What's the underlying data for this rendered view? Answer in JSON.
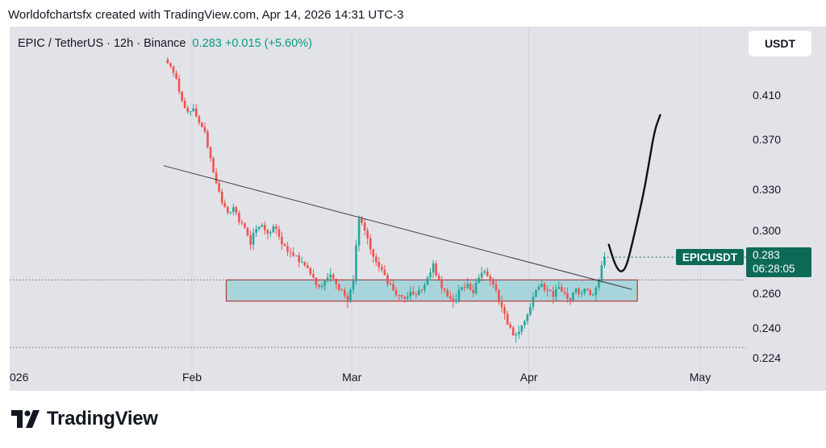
{
  "header": {
    "caption": "Worldofchartsfx created with TradingView.com, Apr 14, 2026 14:31 UTC-3"
  },
  "legend": {
    "symbol": "EPIC / TetherUS · 12h · Binance",
    "price": "0.283",
    "change": "+0.015 (+5.60%)"
  },
  "currency_button": "USDT",
  "price_tag": {
    "symbol": "EPICUSDT",
    "price": "0.283",
    "countdown": "06:28:05"
  },
  "colors": {
    "up": "#26a69a",
    "down": "#ef5350",
    "zone_fill": "#a8d5dc",
    "zone_border": "#b23a3a",
    "tag": "#0c6b57"
  },
  "brand": {
    "name": "TradingView",
    "icon": "tradingview-logo-icon"
  },
  "chart_data": {
    "type": "candlestick",
    "symbol": "EPICUSDT",
    "timeframe": "12h",
    "y_ticks": [
      "0.410",
      "0.370",
      "0.330",
      "0.300",
      "0.260",
      "0.240",
      "0.224"
    ],
    "x_ticks": [
      {
        "label": "026",
        "date": "2026-01-01"
      },
      {
        "label": "Feb",
        "date": "2026-02-01"
      },
      {
        "label": "Mar",
        "date": "2026-03-01"
      },
      {
        "label": "Apr",
        "date": "2026-04-01"
      },
      {
        "label": "May",
        "date": "2026-05-01"
      }
    ],
    "closes": [
      [
        "2026-01-28",
        0.436
      ],
      [
        "2026-01-29",
        0.425
      ],
      [
        "2026-01-30",
        0.405
      ],
      [
        "2026-01-31",
        0.395
      ],
      [
        "2026-02-01",
        0.398
      ],
      [
        "2026-02-02",
        0.385
      ],
      [
        "2026-02-03",
        0.377
      ],
      [
        "2026-02-04",
        0.355
      ],
      [
        "2026-02-05",
        0.335
      ],
      [
        "2026-02-06",
        0.32
      ],
      [
        "2026-02-07",
        0.313
      ],
      [
        "2026-02-08",
        0.317
      ],
      [
        "2026-02-09",
        0.306
      ],
      [
        "2026-02-10",
        0.302
      ],
      [
        "2026-02-11",
        0.291
      ],
      [
        "2026-02-12",
        0.301
      ],
      [
        "2026-02-13",
        0.304
      ],
      [
        "2026-02-14",
        0.298
      ],
      [
        "2026-02-15",
        0.303
      ],
      [
        "2026-02-16",
        0.296
      ],
      [
        "2026-02-17",
        0.29
      ],
      [
        "2026-02-18",
        0.286
      ],
      [
        "2026-02-19",
        0.284
      ],
      [
        "2026-02-20",
        0.28
      ],
      [
        "2026-02-21",
        0.276
      ],
      [
        "2026-02-22",
        0.27
      ],
      [
        "2026-02-23",
        0.264
      ],
      [
        "2026-02-24",
        0.268
      ],
      [
        "2026-02-25",
        0.272
      ],
      [
        "2026-02-26",
        0.266
      ],
      [
        "2026-02-27",
        0.262
      ],
      [
        "2026-02-28",
        0.255
      ],
      [
        "2026-03-01",
        0.268
      ],
      [
        "2026-03-02",
        0.309
      ],
      [
        "2026-03-03",
        0.3
      ],
      [
        "2026-03-04",
        0.288
      ],
      [
        "2026-03-05",
        0.28
      ],
      [
        "2026-03-06",
        0.275
      ],
      [
        "2026-03-07",
        0.266
      ],
      [
        "2026-03-08",
        0.262
      ],
      [
        "2026-03-09",
        0.259
      ],
      [
        "2026-03-10",
        0.257
      ],
      [
        "2026-03-11",
        0.261
      ],
      [
        "2026-03-12",
        0.259
      ],
      [
        "2026-03-13",
        0.262
      ],
      [
        "2026-03-14",
        0.27
      ],
      [
        "2026-03-15",
        0.279
      ],
      [
        "2026-03-16",
        0.268
      ],
      [
        "2026-03-17",
        0.262
      ],
      [
        "2026-03-18",
        0.257
      ],
      [
        "2026-03-19",
        0.256
      ],
      [
        "2026-03-20",
        0.264
      ],
      [
        "2026-03-21",
        0.266
      ],
      [
        "2026-03-22",
        0.26
      ],
      [
        "2026-03-23",
        0.27
      ],
      [
        "2026-03-24",
        0.274
      ],
      [
        "2026-03-25",
        0.268
      ],
      [
        "2026-03-26",
        0.262
      ],
      [
        "2026-03-27",
        0.252
      ],
      [
        "2026-03-28",
        0.242
      ],
      [
        "2026-03-29",
        0.236
      ],
      [
        "2026-03-30",
        0.238
      ],
      [
        "2026-03-31",
        0.244
      ],
      [
        "2026-04-01",
        0.252
      ],
      [
        "2026-04-02",
        0.262
      ],
      [
        "2026-04-03",
        0.266
      ],
      [
        "2026-04-04",
        0.262
      ],
      [
        "2026-04-05",
        0.258
      ],
      [
        "2026-04-06",
        0.264
      ],
      [
        "2026-04-07",
        0.26
      ],
      [
        "2026-04-08",
        0.256
      ],
      [
        "2026-04-09",
        0.263
      ],
      [
        "2026-04-10",
        0.26
      ],
      [
        "2026-04-11",
        0.262
      ],
      [
        "2026-04-12",
        0.259
      ],
      [
        "2026-04-13",
        0.268
      ],
      [
        "2026-04-14",
        0.283
      ]
    ],
    "horizontal_lines": [
      0.2685,
      0.2295
    ],
    "support_zone": {
      "from": "2026-02-07",
      "to": "2026-04-20",
      "low": 0.2555,
      "high": 0.2685
    },
    "trendline": {
      "start": [
        "2026-01-27",
        0.349
      ],
      "end": [
        "2026-04-19",
        0.2625
      ]
    },
    "projection": [
      [
        "2026-04-15",
        0.291
      ],
      [
        "2026-04-16",
        0.279
      ],
      [
        "2026-04-17",
        0.273
      ],
      [
        "2026-04-18",
        0.276
      ],
      [
        "2026-04-19",
        0.29
      ],
      [
        "2026-04-21",
        0.325
      ],
      [
        "2026-04-22",
        0.35
      ],
      [
        "2026-04-23",
        0.378
      ],
      [
        "2026-04-24",
        0.392
      ]
    ],
    "last_price": 0.283,
    "grid": true,
    "legend_position": "top-left"
  }
}
